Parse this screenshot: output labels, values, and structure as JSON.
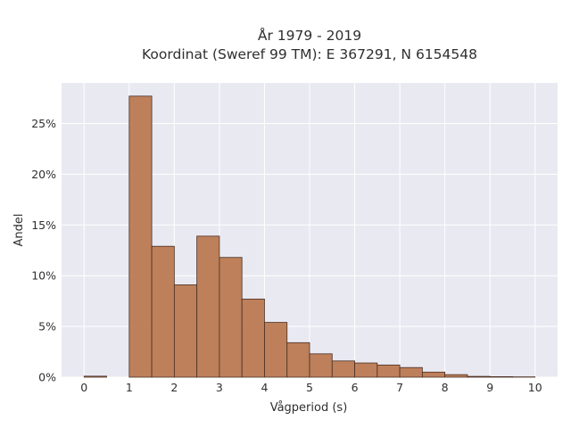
{
  "chart_data": {
    "type": "bar",
    "title_line1": "År 1979 - 2019",
    "title_line2": "Koordinat (Sweref 99 TM): E 367291, N 6154548",
    "xlabel": "Vågperiod (s)",
    "ylabel": "Andel",
    "bin_width": 0.5,
    "bin_starts": [
      0,
      0.5,
      1,
      1.5,
      2,
      2.5,
      3,
      3.5,
      4,
      4.5,
      5,
      5.5,
      6,
      6.5,
      7,
      7.5,
      8,
      8.5,
      9,
      9.5
    ],
    "values": [
      0.1,
      0,
      27.7,
      12.9,
      9.1,
      13.9,
      11.8,
      7.7,
      5.4,
      3.4,
      2.3,
      1.6,
      1.4,
      1.2,
      0.95,
      0.5,
      0.25,
      0.08,
      0.05,
      0.03
    ],
    "xlim": [
      -0.5,
      10.5
    ],
    "ylim": [
      0,
      29
    ],
    "x_ticks": [
      0,
      1,
      2,
      3,
      4,
      5,
      6,
      7,
      8,
      9,
      10
    ],
    "x_tick_labels": [
      "0",
      "1",
      "2",
      "3",
      "4",
      "5",
      "6",
      "7",
      "8",
      "9",
      "10"
    ],
    "y_ticks": [
      0,
      5,
      10,
      15,
      20,
      25
    ],
    "y_tick_labels": [
      "0%",
      "5%",
      "10%",
      "15%",
      "20%",
      "25%"
    ],
    "grid": true,
    "colors": {
      "bar_fill": "#bb7a52",
      "bar_stroke": "#4a2f22",
      "plot_bg": "#e9e9f2",
      "grid": "#ffffff"
    }
  }
}
